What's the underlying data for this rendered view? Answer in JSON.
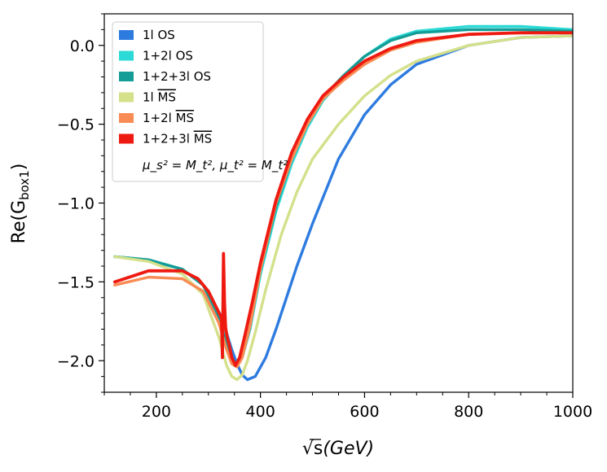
{
  "chart_data": {
    "type": "line",
    "xlabel_main": "√s",
    "xlabel_unit": "(GeV)",
    "ylabel_prefix": "Re(G",
    "ylabel_sub": "box1",
    "ylabel_suffix": ")",
    "xlim": [
      100,
      1000
    ],
    "ylim": [
      -2.2,
      0.2
    ],
    "xticks": [
      200,
      400,
      600,
      800,
      1000
    ],
    "xtick_labels": [
      "200",
      "400",
      "600",
      "800",
      "1000"
    ],
    "yticks": [
      0.0,
      -0.5,
      -1.0,
      -1.5,
      -2.0
    ],
    "ytick_labels": [
      "0.0",
      "−0.5",
      "−1.0",
      "−1.5",
      "−2.0"
    ],
    "grid": false,
    "legend_position": "top-left",
    "legend_note": "μ_s² = M_t², μ_t² = M_t²",
    "series": [
      {
        "name": "1l OS",
        "label_main": "1l OS",
        "label_ms": "",
        "color": "#2e7be0",
        "width": 3.4,
        "x": [
          120,
          185,
          250,
          290,
          325,
          345,
          355,
          365,
          375,
          390,
          410,
          430,
          450,
          470,
          500,
          550,
          600,
          650,
          700,
          800,
          900,
          1000
        ],
        "y": [
          -1.34,
          -1.36,
          -1.42,
          -1.52,
          -1.72,
          -1.93,
          -2.02,
          -2.09,
          -2.12,
          -2.1,
          -1.98,
          -1.8,
          -1.6,
          -1.4,
          -1.13,
          -0.72,
          -0.44,
          -0.25,
          -0.12,
          0.0,
          0.05,
          0.06
        ]
      },
      {
        "name": "1+2l OS",
        "label_main": "1+2l OS",
        "label_ms": "",
        "color": "#2bd9d6",
        "width": 3.4,
        "x": [
          120,
          185,
          250,
          290,
          320,
          335,
          345,
          355,
          365,
          380,
          400,
          430,
          460,
          490,
          520,
          560,
          600,
          650,
          700,
          800,
          900,
          1000
        ],
        "y": [
          -1.34,
          -1.36,
          -1.42,
          -1.52,
          -1.72,
          -1.9,
          -2.0,
          -2.03,
          -1.98,
          -1.8,
          -1.45,
          -1.05,
          -0.75,
          -0.52,
          -0.35,
          -0.2,
          -0.07,
          0.04,
          0.09,
          0.12,
          0.12,
          0.1
        ]
      },
      {
        "name": "1+2+3l OS",
        "label_main": "1+2+3l OS",
        "label_ms": "",
        "color": "#149c96",
        "width": 3.4,
        "x": [
          120,
          185,
          250,
          290,
          320,
          335,
          345,
          355,
          365,
          380,
          400,
          430,
          460,
          490,
          520,
          560,
          600,
          650,
          700,
          800,
          900,
          1000
        ],
        "y": [
          -1.34,
          -1.36,
          -1.42,
          -1.52,
          -1.72,
          -1.9,
          -2.0,
          -2.02,
          -1.96,
          -1.78,
          -1.42,
          -1.02,
          -0.72,
          -0.5,
          -0.33,
          -0.19,
          -0.07,
          0.03,
          0.08,
          0.1,
          0.1,
          0.09
        ]
      },
      {
        "name": "1l MS",
        "label_main": "1l ",
        "label_ms": "MS",
        "color": "#d4e08a",
        "width": 3.4,
        "x": [
          120,
          185,
          250,
          290,
          320,
          335,
          345,
          355,
          365,
          375,
          390,
          410,
          440,
          470,
          500,
          550,
          600,
          650,
          700,
          800,
          900,
          1000
        ],
        "y": [
          -1.34,
          -1.37,
          -1.45,
          -1.58,
          -1.85,
          -2.03,
          -2.1,
          -2.12,
          -2.09,
          -2.0,
          -1.82,
          -1.55,
          -1.2,
          -0.93,
          -0.72,
          -0.5,
          -0.32,
          -0.19,
          -0.1,
          0.0,
          0.05,
          0.06
        ]
      },
      {
        "name": "1+2l MS",
        "label_main": "1+2l ",
        "label_ms": "MS",
        "color": "#f98b54",
        "width": 3.4,
        "x": [
          120,
          185,
          250,
          290,
          320,
          335,
          345,
          355,
          365,
          380,
          400,
          430,
          460,
          490,
          520,
          560,
          600,
          650,
          700,
          800,
          900,
          1000
        ],
        "y": [
          -1.52,
          -1.47,
          -1.48,
          -1.56,
          -1.76,
          -1.93,
          -2.02,
          -2.04,
          -1.98,
          -1.78,
          -1.42,
          -1.0,
          -0.72,
          -0.5,
          -0.34,
          -0.22,
          -0.12,
          -0.03,
          0.02,
          0.07,
          0.08,
          0.08
        ]
      },
      {
        "name": "1+2+3l MS",
        "label_main": "1+2+3l ",
        "label_ms": "MS",
        "color": "#ee1a11",
        "width": 3.8,
        "x": [
          120,
          185,
          250,
          280,
          300,
          318,
          325,
          327,
          329,
          331,
          333,
          336,
          340,
          345,
          352,
          360,
          370,
          385,
          400,
          430,
          460,
          490,
          520,
          560,
          600,
          650,
          700,
          800,
          900,
          1000
        ],
        "y": [
          -1.5,
          -1.43,
          -1.43,
          -1.48,
          -1.56,
          -1.68,
          -1.73,
          -1.98,
          -1.32,
          -1.64,
          -1.79,
          -1.85,
          -1.9,
          -1.98,
          -2.03,
          -1.98,
          -1.84,
          -1.62,
          -1.38,
          -0.98,
          -0.68,
          -0.47,
          -0.32,
          -0.2,
          -0.1,
          -0.02,
          0.03,
          0.07,
          0.08,
          0.08
        ]
      }
    ]
  }
}
